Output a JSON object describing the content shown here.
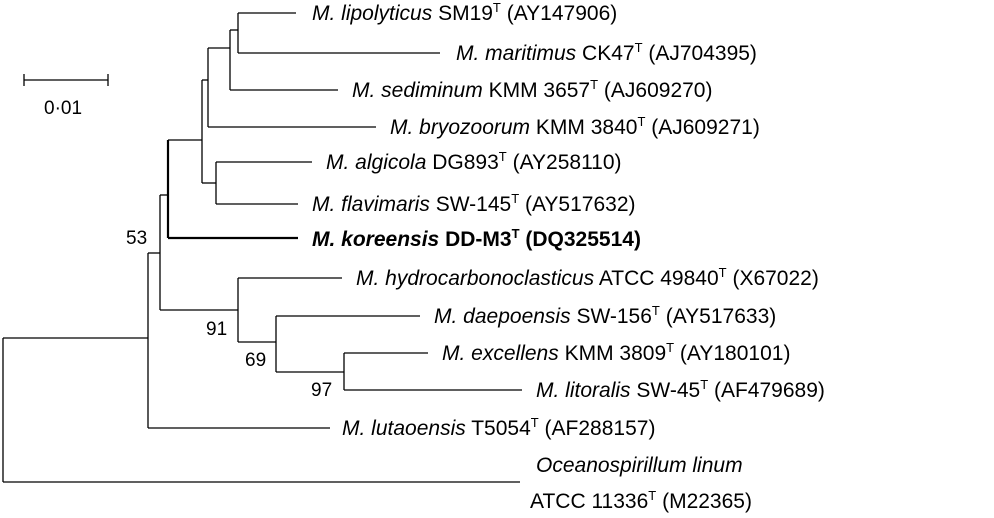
{
  "figure": {
    "type": "phylogenetic-tree",
    "scale_bar_label": "0·01",
    "type_strain_mark": "T"
  },
  "taxa": [
    {
      "genus": "M.",
      "species": "lipolyticus",
      "strain": "SM19",
      "accession": "(AY147906)",
      "bold": false
    },
    {
      "genus": "M.",
      "species": "maritimus",
      "strain": "CK47",
      "accession": "(AJ704395)",
      "bold": false
    },
    {
      "genus": "M.",
      "species": "sediminum",
      "strain": "KMM 3657",
      "accession": "(AJ609270)",
      "bold": false
    },
    {
      "genus": "M.",
      "species": "bryozoorum",
      "strain": "KMM 3840",
      "accession": "(AJ609271)",
      "bold": false
    },
    {
      "genus": "M.",
      "species": "algicola",
      "strain": "DG893",
      "accession": "(AY258110)",
      "bold": false
    },
    {
      "genus": "M.",
      "species": "flavimaris",
      "strain": "SW-145",
      "accession": "(AY517632)",
      "bold": false
    },
    {
      "genus": "M.",
      "species": "koreensis",
      "strain": "DD-M3",
      "accession": "(DQ325514)",
      "bold": true
    },
    {
      "genus": "M.",
      "species": "hydrocarbonoclasticus",
      "strain": "ATCC 49840",
      "accession": "(X67022)",
      "bold": false
    },
    {
      "genus": "M.",
      "species": "daepoensis",
      "strain": "SW-156",
      "accession": "(AY517633)",
      "bold": false
    },
    {
      "genus": "M.",
      "species": "excellens",
      "strain": "KMM 3809",
      "accession": "(AY180101)",
      "bold": false
    },
    {
      "genus": "M.",
      "species": "litoralis",
      "strain": "SW-45",
      "accession": "(AF479689)",
      "bold": false
    },
    {
      "genus": "M.",
      "species": "lutaoensis",
      "strain": "T5054",
      "accession": "(AF288157)",
      "bold": false
    }
  ],
  "outgroup": {
    "name": "Oceanospirillum linum",
    "strain": "ATCC 11336",
    "accession": "(M22365)"
  },
  "bootstrap": [
    "53",
    "91",
    "69",
    "97"
  ]
}
